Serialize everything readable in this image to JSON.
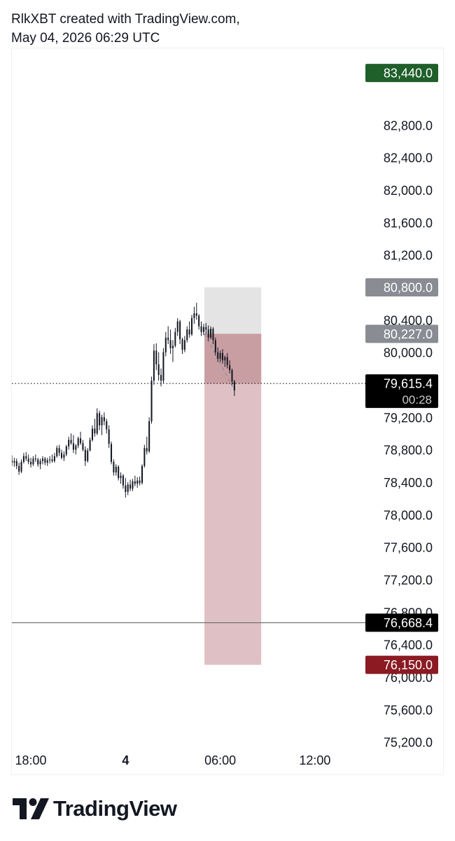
{
  "header": {
    "line1": "RlkXBT created with TradingView.com,",
    "line2": "May 04, 2026 06:29 UTC"
  },
  "footer": {
    "brand": "TradingView",
    "logo_icon": "tradingview-logo-icon"
  },
  "chart_data": {
    "type": "candlestick",
    "y_ticks": [
      82800,
      82400,
      82000,
      81600,
      81200,
      80400,
      80000,
      79200,
      78800,
      78400,
      78000,
      77600,
      77200,
      76800,
      76400,
      76000,
      75600,
      75200
    ],
    "y_tick_labels": [
      "82,800.0",
      "82,400.0",
      "82,000.0",
      "81,600.0",
      "81,200.0",
      "80,400.0",
      "80,000.0",
      "79,200.0",
      "78,800.0",
      "78,400.0",
      "78,000.0",
      "77,600.0",
      "77,200.0",
      "76,800.0",
      "76,400.0",
      "76,000.0",
      "75,600.0",
      "75,200.0"
    ],
    "ylim": [
      74800,
      83700
    ],
    "x_range_hours": [
      -7.2,
      15.2
    ],
    "x_ticks": [
      {
        "hours": -6,
        "label": "18:00",
        "bold": false
      },
      {
        "hours": 0,
        "label": "4",
        "bold": true
      },
      {
        "hours": 6,
        "label": "06:00",
        "bold": false
      },
      {
        "hours": 12,
        "label": "12:00",
        "bold": false
      }
    ],
    "price_tags": [
      {
        "value": 83440,
        "label": "83,440.0",
        "color": "#1e5f2a",
        "text_color": "#ffffff"
      },
      {
        "value": 80800,
        "label": "80,800.0",
        "color": "#898c93",
        "text_color": "#ffffff"
      },
      {
        "value": 80227,
        "label": "80,227.0",
        "color": "#898c93",
        "text_color": "#ffffff"
      },
      {
        "value": 76668.4,
        "label": "76,668.4",
        "color": "#000000",
        "text_color": "#ffffff"
      },
      {
        "value": 76150,
        "label": "76,150.0",
        "color": "#8b1a22",
        "text_color": "#ffffff"
      }
    ],
    "current_price": {
      "value": 79615.4,
      "label": "79,615.4",
      "countdown": "00:28",
      "color": "#000000"
    },
    "horizontal_line": {
      "value": 76668.4,
      "color": "#6a6a6a"
    },
    "position_tool": {
      "start_hours": 5.0,
      "end_hours": 8.6,
      "entry": 80227,
      "target": 80800,
      "stop": 76150,
      "profit_color": "#e4e4e4",
      "loss_color": "#dfc1c5",
      "loss_active_color": "#c99ea2"
    },
    "candle_color": "#131722",
    "candles": [
      [
        -7.2,
        78670,
        78730,
        78600,
        78640
      ],
      [
        -7.05,
        78640,
        78700,
        78590,
        78660
      ],
      [
        -6.9,
        78660,
        78690,
        78560,
        78600
      ],
      [
        -6.75,
        78600,
        78640,
        78490,
        78530
      ],
      [
        -6.6,
        78530,
        78680,
        78510,
        78650
      ],
      [
        -6.45,
        78650,
        78760,
        78630,
        78720
      ],
      [
        -6.3,
        78720,
        78770,
        78660,
        78690
      ],
      [
        -6.15,
        78690,
        78740,
        78620,
        78650
      ],
      [
        -6.0,
        78650,
        78700,
        78580,
        78620
      ],
      [
        -5.85,
        78620,
        78720,
        78600,
        78690
      ],
      [
        -5.7,
        78690,
        78740,
        78650,
        78680
      ],
      [
        -5.55,
        78680,
        78700,
        78590,
        78620
      ],
      [
        -5.4,
        78620,
        78690,
        78560,
        78660
      ],
      [
        -5.25,
        78660,
        78720,
        78620,
        78690
      ],
      [
        -5.1,
        78690,
        78710,
        78610,
        78640
      ],
      [
        -4.95,
        78640,
        78700,
        78600,
        78670
      ],
      [
        -4.8,
        78670,
        78720,
        78630,
        78680
      ],
      [
        -4.65,
        78680,
        78740,
        78640,
        78660
      ],
      [
        -4.5,
        78660,
        78760,
        78640,
        78720
      ],
      [
        -4.35,
        78720,
        78850,
        78700,
        78820
      ],
      [
        -4.2,
        78820,
        78860,
        78720,
        78760
      ],
      [
        -4.05,
        78760,
        78800,
        78680,
        78700
      ],
      [
        -3.9,
        78700,
        78780,
        78660,
        78740
      ],
      [
        -3.75,
        78740,
        78860,
        78720,
        78840
      ],
      [
        -3.6,
        78840,
        78960,
        78800,
        78920
      ],
      [
        -3.45,
        78920,
        79000,
        78860,
        78880
      ],
      [
        -3.3,
        78880,
        78980,
        78760,
        78800
      ],
      [
        -3.15,
        78800,
        78870,
        78740,
        78850
      ],
      [
        -3.0,
        78850,
        78960,
        78820,
        78940
      ],
      [
        -2.85,
        78940,
        79020,
        78860,
        78880
      ],
      [
        -2.7,
        78880,
        78920,
        78780,
        78800
      ],
      [
        -2.55,
        78800,
        78840,
        78600,
        78660
      ],
      [
        -2.4,
        78660,
        78820,
        78640,
        78790
      ],
      [
        -2.25,
        78790,
        78950,
        78780,
        78920
      ],
      [
        -2.1,
        78920,
        79100,
        78900,
        79060
      ],
      [
        -1.95,
        79060,
        79180,
        78960,
        79000
      ],
      [
        -1.8,
        79000,
        79310,
        78980,
        79250
      ],
      [
        -1.65,
        79250,
        79280,
        79040,
        79100
      ],
      [
        -1.5,
        79100,
        79230,
        78980,
        79200
      ],
      [
        -1.35,
        79200,
        79260,
        79100,
        79150
      ],
      [
        -1.2,
        79150,
        79180,
        79000,
        79050
      ],
      [
        -1.05,
        79050,
        79100,
        78820,
        78870
      ],
      [
        -0.9,
        78870,
        78900,
        78620,
        78650
      ],
      [
        -0.75,
        78650,
        78680,
        78480,
        78520
      ],
      [
        -0.6,
        78520,
        78620,
        78480,
        78590
      ],
      [
        -0.45,
        78590,
        78610,
        78420,
        78450
      ],
      [
        -0.3,
        78450,
        78520,
        78380,
        78480
      ],
      [
        -0.15,
        78480,
        78500,
        78320,
        78360
      ],
      [
        0.0,
        78360,
        78450,
        78210,
        78280
      ],
      [
        0.15,
        78280,
        78400,
        78240,
        78370
      ],
      [
        0.3,
        78370,
        78430,
        78290,
        78320
      ],
      [
        0.45,
        78320,
        78440,
        78290,
        78410
      ],
      [
        0.6,
        78410,
        78480,
        78350,
        78380
      ],
      [
        0.75,
        78380,
        78460,
        78330,
        78420
      ],
      [
        0.9,
        78420,
        78470,
        78360,
        78390
      ],
      [
        1.05,
        78390,
        78620,
        78370,
        78600
      ],
      [
        1.2,
        78600,
        78860,
        78580,
        78820
      ],
      [
        1.35,
        78820,
        78960,
        78740,
        78780
      ],
      [
        1.5,
        78780,
        79200,
        78760,
        79150
      ],
      [
        1.65,
        79150,
        79700,
        79120,
        79650
      ],
      [
        1.8,
        79650,
        80100,
        79600,
        80020
      ],
      [
        1.95,
        80020,
        80110,
        79780,
        79850
      ],
      [
        2.1,
        79850,
        80000,
        79650,
        79720
      ],
      [
        2.25,
        79720,
        79800,
        79580,
        79650
      ],
      [
        2.4,
        79650,
        80050,
        79620,
        80000
      ],
      [
        2.55,
        80000,
        80250,
        79950,
        80180
      ],
      [
        2.7,
        80180,
        80320,
        80100,
        80150
      ],
      [
        2.85,
        80150,
        80280,
        79980,
        80050
      ],
      [
        3.0,
        80050,
        80150,
        79880,
        80080
      ],
      [
        3.15,
        80080,
        80300,
        80060,
        80250
      ],
      [
        3.3,
        80250,
        80420,
        80200,
        80380
      ],
      [
        3.45,
        80380,
        80400,
        80100,
        80160
      ],
      [
        3.6,
        80160,
        80180,
        79980,
        80030
      ],
      [
        3.75,
        80030,
        80200,
        80000,
        80150
      ],
      [
        3.9,
        80150,
        80320,
        80120,
        80280
      ],
      [
        4.05,
        80280,
        80380,
        80180,
        80220
      ],
      [
        4.2,
        80220,
        80460,
        80200,
        80420
      ],
      [
        4.35,
        80420,
        80560,
        80350,
        80480
      ],
      [
        4.5,
        80480,
        80610,
        80400,
        80450
      ],
      [
        4.65,
        80450,
        80470,
        80280,
        80320
      ],
      [
        4.8,
        80320,
        80380,
        80200,
        80250
      ],
      [
        4.95,
        80250,
        80350,
        80210,
        80310
      ],
      [
        5.1,
        80310,
        80360,
        80220,
        80280
      ],
      [
        5.25,
        80280,
        80330,
        80140,
        80180
      ],
      [
        5.4,
        80180,
        80320,
        80160,
        80290
      ],
      [
        5.55,
        80290,
        80310,
        80100,
        80150
      ],
      [
        5.7,
        80150,
        80180,
        79960,
        80000
      ],
      [
        5.85,
        80000,
        80060,
        79880,
        79920
      ],
      [
        6.0,
        79920,
        80020,
        79880,
        79990
      ],
      [
        6.15,
        79990,
        80040,
        79860,
        79900
      ],
      [
        6.3,
        79900,
        79960,
        79820,
        79940
      ],
      [
        6.45,
        79940,
        79990,
        79800,
        79840
      ],
      [
        6.6,
        79840,
        79900,
        79740,
        79780
      ],
      [
        6.75,
        79780,
        79800,
        79600,
        79640
      ],
      [
        6.9,
        79640,
        79660,
        79460,
        79530
      ]
    ]
  }
}
